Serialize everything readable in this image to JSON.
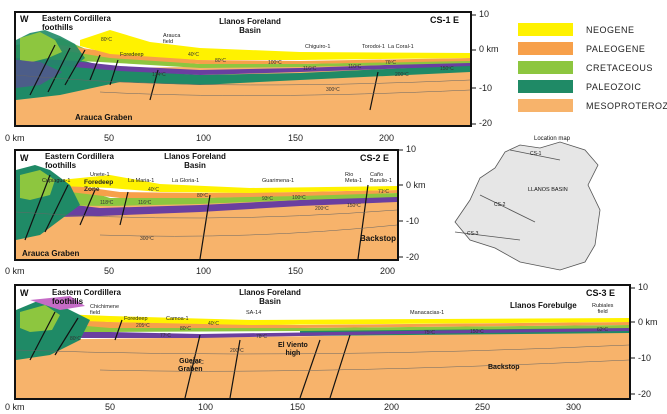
{
  "sections": [
    {
      "id": "CS-1 E",
      "west": "W",
      "left_title": "Eastern Cordillera\nfoothills",
      "mid_title": "Llanos Foreland\nBasin",
      "graben": "Arauca Graben",
      "wells": [
        "Foredeep",
        "Arauca\nfield",
        "Chiguiro-1",
        "Torodoi-1",
        "La Coral-1"
      ],
      "temps": [
        "80ºC",
        "134ºC",
        "40ºC",
        "80ºC",
        "100ºC",
        "116ºC",
        "110ºC",
        "76ºC",
        "200ºC",
        "150ºC",
        "300ºC"
      ],
      "x_ticks": [
        "0 km",
        "50",
        "100",
        "150",
        "200"
      ],
      "y_ticks": [
        "10",
        "0 km",
        "-10",
        "-20"
      ]
    },
    {
      "id": "CS-2 E",
      "west": "W",
      "left_title": "Eastern Cordillera\nfoothills",
      "mid_title": "Llanos Foreland\nBasin",
      "graben": "Arauca Graben",
      "backstop": "Backstop",
      "wells": [
        "Unete-1",
        "Cupiagua-1",
        "Foredeep\nZone",
        "La Maria-1",
        "La Gloria-1",
        "Guarimena-1",
        "Rio\nMeta-1",
        "Caño\nBarulio-1"
      ],
      "temps": [
        "118ºC",
        "116ºC",
        "40ºC",
        "80ºC",
        "93ºC",
        "100ºC",
        "150ºC",
        "200ºC",
        "71ºC",
        "300ºC"
      ],
      "x_ticks": [
        "0 km",
        "50",
        "100",
        "150",
        "200"
      ],
      "y_ticks": [
        "10",
        "0 km",
        "-10",
        "-20"
      ]
    },
    {
      "id": "CS-3 E",
      "west": "W",
      "left_title": "Eastern Cordillera\nfoothills",
      "mid_title": "Llanos Foreland\nBasin",
      "right_title": "Llanos Forebulge",
      "wells": [
        "Chichimene\nfield",
        "Foredeep",
        "Camoa-1",
        "SA-14",
        "Manacacias-1",
        "Rubiales\nfield"
      ],
      "labels": [
        "El Viento\nhigh",
        "Güejar\nGraben",
        "Backstop"
      ],
      "temps": [
        "80ºC",
        "77ºC",
        "80ºC",
        "205ºC",
        "40ºC",
        "78ºC",
        "75ºC",
        "150ºC",
        "62ºC",
        "200ºC",
        "300ºC"
      ],
      "x_ticks": [
        "0 km",
        "50",
        "100",
        "150",
        "200",
        "250",
        "300"
      ],
      "y_ticks": [
        "10",
        "0 km",
        "-10",
        "-20"
      ]
    }
  ],
  "legend": [
    {
      "label": "NEOGENE",
      "color": "#fff200"
    },
    {
      "label": "PALEOGENE",
      "color": "#f7a04a"
    },
    {
      "label": "CRETACEOUS",
      "color": "#8dc63f"
    },
    {
      "label": "PALEOZOIC",
      "color": "#1f8a66"
    },
    {
      "label": "MESOPROTEROZOIC",
      "color": "#f7b36b"
    }
  ],
  "location_map": {
    "title": "Location map",
    "basin": "LLANOS BASIN",
    "lines": [
      "CS-1",
      "CS-2",
      "CS-3"
    ]
  }
}
